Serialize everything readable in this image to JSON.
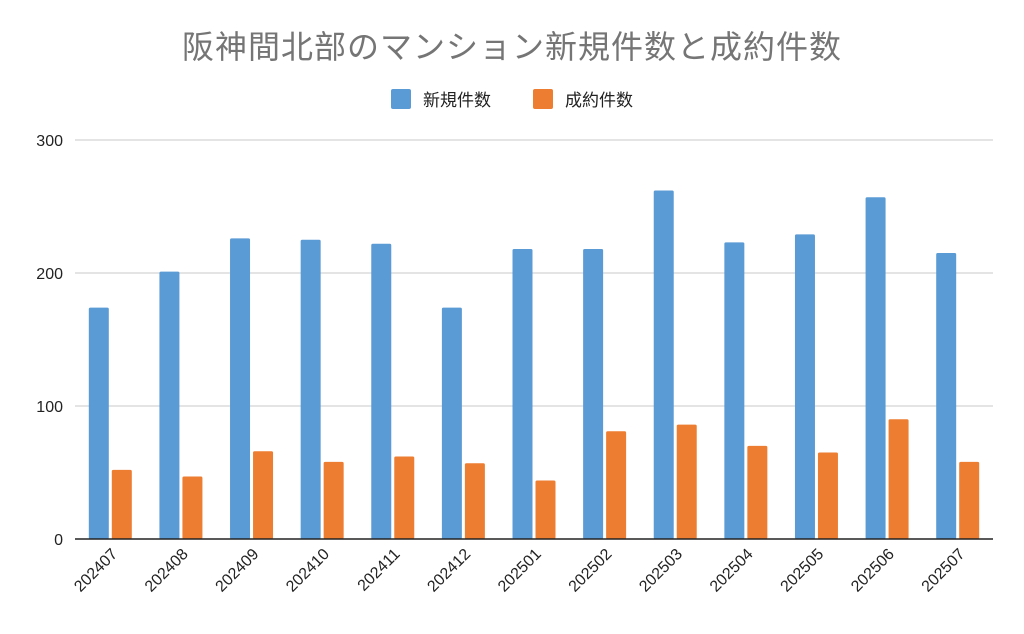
{
  "chart_data": {
    "type": "bar",
    "title": "阪神間北部のマンション新規件数と成約件数",
    "xlabel": "",
    "ylabel": "",
    "ylim": [
      0,
      300
    ],
    "yticks": [
      0,
      100,
      200,
      300
    ],
    "grid": true,
    "legend_position": "top",
    "categories": [
      "202407",
      "202408",
      "202409",
      "202410",
      "202411",
      "202412",
      "202501",
      "202502",
      "202503",
      "202504",
      "202505",
      "202506",
      "202507"
    ],
    "series": [
      {
        "name": "新規件数",
        "color": "#5B9BD5",
        "values": [
          174,
          201,
          226,
          225,
          222,
          174,
          218,
          218,
          262,
          223,
          229,
          257,
          215
        ]
      },
      {
        "name": "成約件数",
        "color": "#ED7D31",
        "values": [
          52,
          47,
          66,
          58,
          62,
          57,
          44,
          81,
          86,
          70,
          65,
          90,
          58
        ]
      }
    ]
  }
}
